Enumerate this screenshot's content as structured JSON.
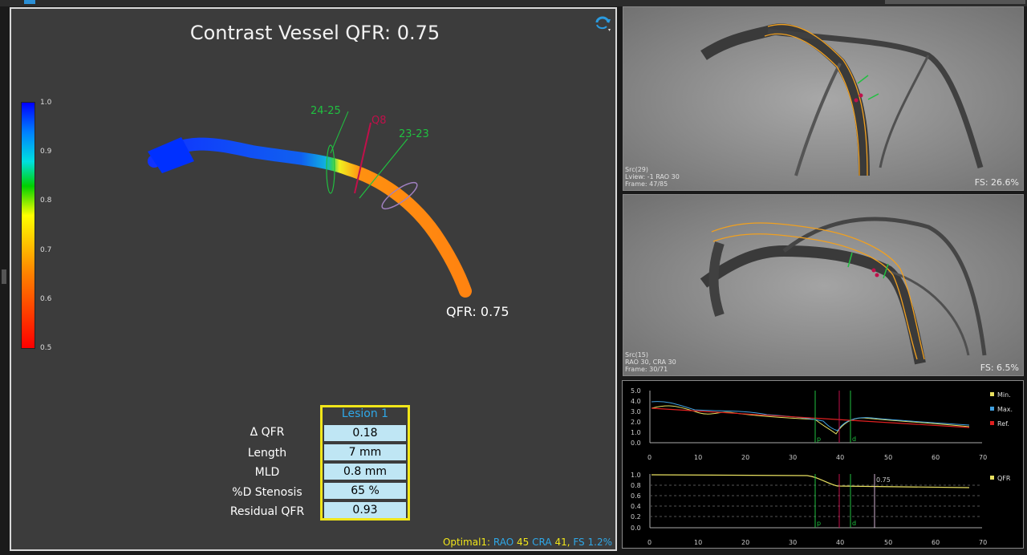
{
  "main": {
    "title": "Contrast Vessel QFR: 0.75",
    "colorbar_ticks": [
      "1.0",
      "0.9",
      "0.8",
      "0.7",
      "0.6",
      "0.5"
    ],
    "markers": {
      "proximal": "24-25",
      "mid": "Q8",
      "distal": "23-23"
    },
    "qfr_label": "QFR: 0.75"
  },
  "lesion_table": {
    "header": "Lesion 1",
    "rows": [
      {
        "label": "Δ  QFR",
        "value": "0.18"
      },
      {
        "label": "Length",
        "value": "7 mm"
      },
      {
        "label": "MLD",
        "value": "0.8 mm"
      },
      {
        "label": "%D Stenosis",
        "value": "65 %"
      },
      {
        "label": "Residual QFR",
        "value": "0.93"
      }
    ]
  },
  "status": {
    "optimal": "Optimal1:",
    "rao": "RAO",
    "rao_val": "45",
    "cra": "CRA",
    "cra_val": "41,",
    "fs": "FS",
    "fs_val": "1.2%"
  },
  "angio_top": {
    "meta1": "Src(29)",
    "meta2": "Lview: -1 RAO 30",
    "meta3": "Frame: 47/85",
    "fs": "FS: 26.6%"
  },
  "angio_bottom": {
    "meta1": "Src(15)",
    "meta2": "RAO 30, CRA 30",
    "meta3": "Frame: 30/71",
    "fs": "FS: 6.5%"
  },
  "diameter_graph": {
    "legend": [
      "Min.",
      "Max.",
      "Ref."
    ],
    "y_ticks": [
      "5.0",
      "4.0",
      "3.0",
      "2.0",
      "1.0",
      "0.0"
    ],
    "x_ticks": [
      "0",
      "10",
      "20",
      "30",
      "40",
      "50",
      "60",
      "70"
    ],
    "marker_labels": [
      "p",
      "d"
    ]
  },
  "qfr_graph": {
    "legend": [
      "QFR"
    ],
    "y_ticks": [
      "1.0",
      "0.8",
      "0.6",
      "0.4",
      "0.2",
      "0.0"
    ],
    "x_ticks": [
      "0",
      "10",
      "20",
      "30",
      "40",
      "50",
      "60",
      "70"
    ],
    "value_label": "0.75",
    "marker_labels": [
      "p",
      "d"
    ]
  },
  "colors": {
    "lesion_border": "#f1e61a",
    "lesion_header": "#2fa8e8",
    "cell_bg": "#bfe6f4",
    "min": "#e8e060",
    "max": "#40a0e0",
    "ref": "#e02020",
    "marker_green": "#20c040",
    "marker_red": "#c0104a"
  }
}
